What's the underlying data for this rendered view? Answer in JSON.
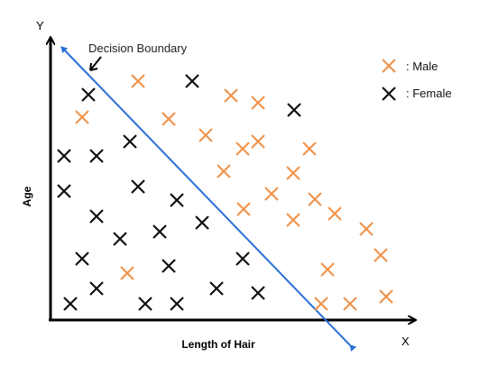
{
  "diagram": {
    "y_axis_letter": "Y",
    "x_axis_letter": "X",
    "y_axis_title": "Age",
    "x_axis_title": "Length of Hair",
    "boundary_label": "Decision Boundary",
    "legend": [
      {
        "label": ": Male",
        "color": "#f0944d"
      },
      {
        "label": ": Female",
        "color": "#111111"
      }
    ],
    "colors": {
      "male": "#f0944d",
      "female": "#111111",
      "boundary": "#2a6fd6",
      "axis": "#000000"
    }
  }
}
